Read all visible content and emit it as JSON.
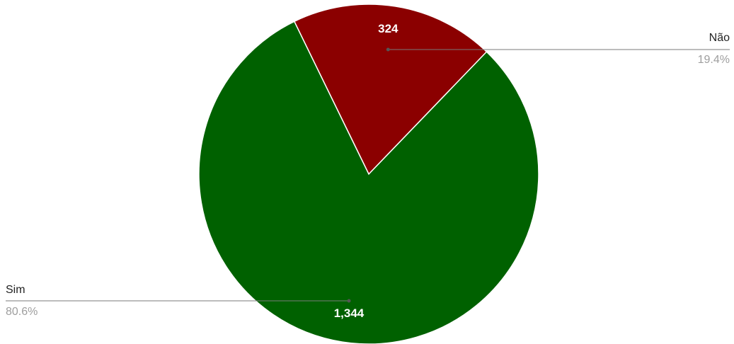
{
  "chart_data": {
    "type": "pie",
    "slices": [
      {
        "label": "Não",
        "value": 324,
        "value_label": "324",
        "percent_label": "19.4%",
        "color": "#8b0000"
      },
      {
        "label": "Sim",
        "value": 1344,
        "value_label": "1,344",
        "percent_label": "80.6%",
        "color": "#006100"
      }
    ],
    "title": "",
    "legend": "callout-labels",
    "start_angle_deg": -26,
    "direction": "clockwise"
  }
}
